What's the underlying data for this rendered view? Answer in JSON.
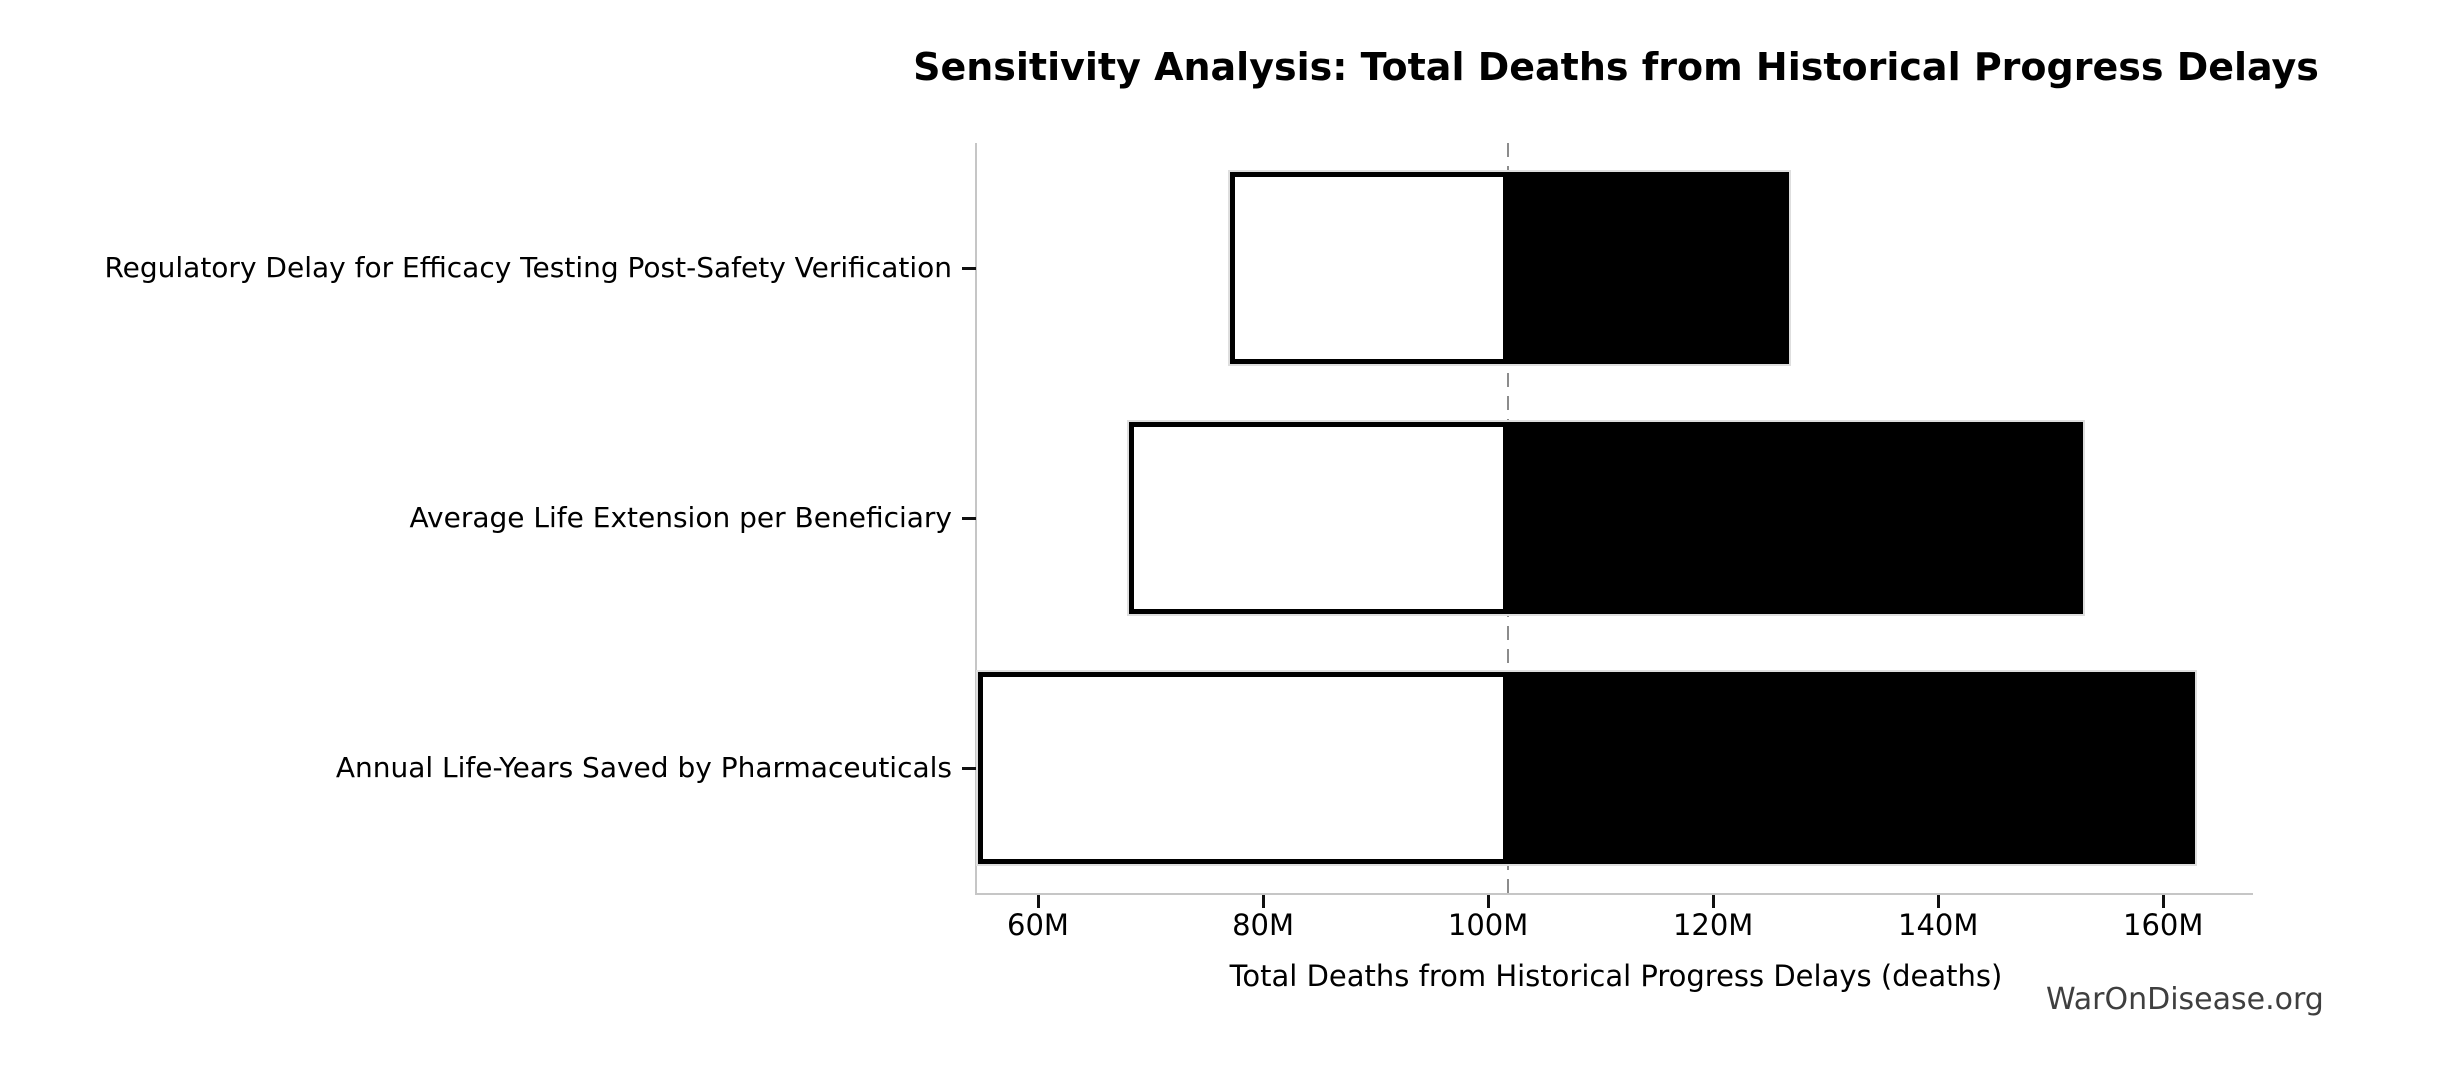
{
  "chart_data": {
    "type": "bar",
    "subtype": "tornado-sensitivity",
    "title": "Sensitivity Analysis: Total Deaths from Historical Progress Delays",
    "xlabel": "Total Deaths from Historical Progress Delays (deaths)",
    "ylabel": "",
    "value_unit": "millions of deaths",
    "categories": [
      "Regulatory Delay for Efficacy Testing Post-Safety Verification",
      "Average Life Extension per Beneficiary",
      "Annual Life-Years Saved by Pharmaceuticals"
    ],
    "series": [
      {
        "name": "low_estimate",
        "values": [
          76.9,
          67.9,
          54.5
        ]
      },
      {
        "name": "high_estimate",
        "values": [
          126.6,
          152.7,
          162.6
        ]
      }
    ],
    "baseline_value": 101.6,
    "xticks": [
      {
        "label": "60M",
        "value": 60
      },
      {
        "label": "80M",
        "value": 80
      },
      {
        "label": "100M",
        "value": 100
      },
      {
        "label": "120M",
        "value": 120
      },
      {
        "label": "140M",
        "value": 140
      },
      {
        "label": "160M",
        "value": 160
      }
    ],
    "xlim": [
      54.4,
      167.8
    ],
    "grid": false,
    "legend": "none",
    "colors": {
      "bar_low_fill": "#ffffff",
      "bar_low_border": "#000000",
      "bar_high_fill": "#000000",
      "bar_outline": "#dedede",
      "baseline_dash": "#8c8c8c",
      "spine": "#c6c6c6",
      "tick": "#111111",
      "text": "#000000",
      "watermark": "#3f3f3f"
    }
  },
  "watermark": {
    "label": "WarOnDisease.org"
  }
}
